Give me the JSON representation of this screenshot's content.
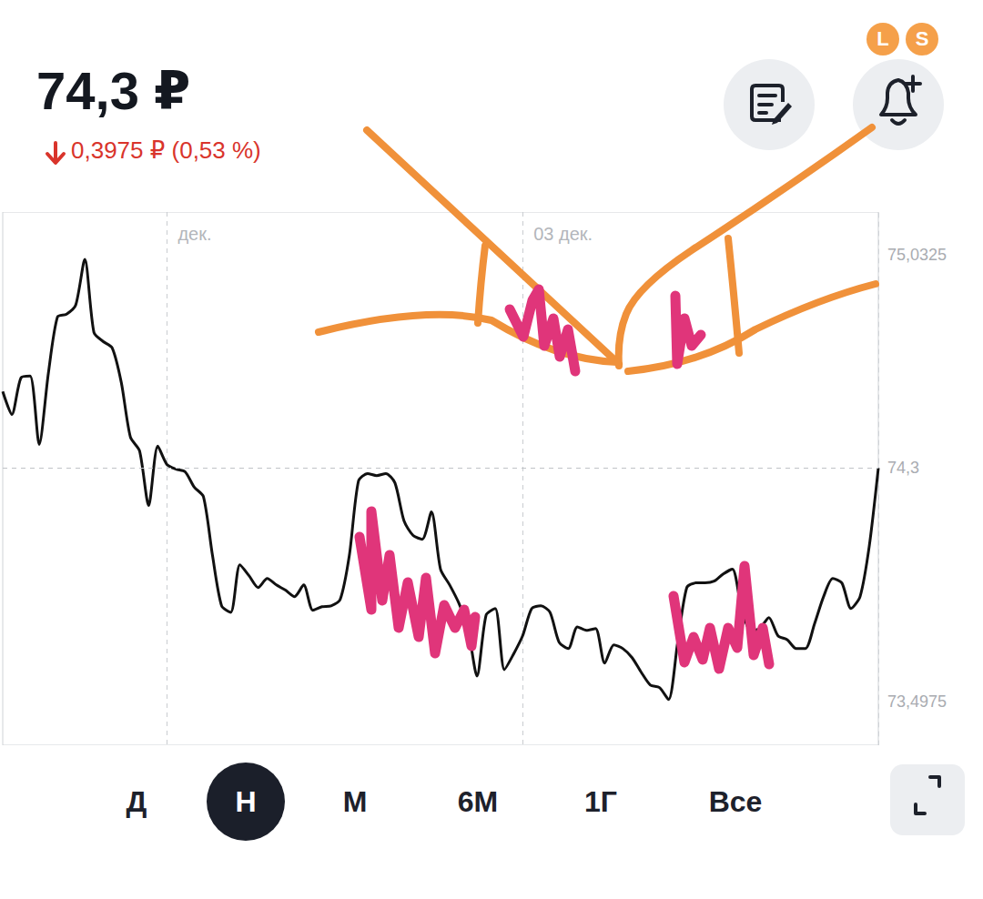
{
  "header": {
    "price": "74,3 ₽",
    "change": "0,3975 ₽ (0,53 %)",
    "badges": [
      "L",
      "S"
    ]
  },
  "periods": {
    "items": [
      "Д",
      "Н",
      "М",
      "6М",
      "1Г",
      "Все"
    ],
    "active": "Н"
  },
  "chart_data": {
    "type": "line",
    "color": "#111111",
    "categories": [
      null,
      null,
      null,
      null,
      null,
      null,
      null,
      null,
      null,
      null,
      null,
      null,
      null,
      null,
      null,
      null,
      null,
      null,
      "дек.",
      null,
      null,
      null,
      null,
      null,
      null,
      null,
      null,
      null,
      null,
      null,
      null,
      null,
      null,
      null,
      null,
      null,
      null,
      null,
      null,
      null,
      null,
      null,
      null,
      null,
      null,
      null,
      null,
      null,
      null,
      null,
      null,
      null,
      null,
      null,
      null,
      null,
      null,
      "03 дек.",
      null,
      null,
      null,
      null,
      null,
      null,
      null,
      null,
      null,
      null,
      null,
      null,
      null,
      null,
      null,
      null,
      null,
      null,
      null,
      null,
      null,
      null,
      null,
      null,
      null,
      null,
      null,
      null,
      null,
      null,
      null,
      null,
      null,
      null,
      null,
      null,
      null,
      null,
      null
    ],
    "values": [
      74.563,
      74.484,
      74.61,
      74.616,
      74.381,
      74.625,
      74.819,
      74.829,
      74.86,
      75.017,
      74.766,
      74.735,
      74.713,
      74.594,
      74.406,
      74.359,
      74.171,
      74.375,
      74.312,
      74.296,
      74.287,
      74.234,
      74.202,
      73.999,
      73.826,
      73.804,
      73.967,
      73.93,
      73.889,
      73.92,
      73.898,
      73.88,
      73.858,
      73.898,
      73.811,
      73.823,
      73.826,
      73.848,
      73.999,
      74.255,
      74.281,
      74.274,
      74.281,
      74.249,
      74.118,
      74.068,
      74.055,
      74.149,
      73.952,
      73.898,
      73.836,
      73.748,
      73.585,
      73.795,
      73.817,
      73.607,
      73.66,
      73.723,
      73.817,
      73.826,
      73.804,
      73.701,
      73.679,
      73.754,
      73.742,
      73.748,
      73.629,
      73.692,
      73.679,
      73.648,
      73.598,
      73.554,
      73.545,
      73.504,
      73.701,
      73.889,
      73.905,
      73.905,
      73.911,
      73.936,
      73.952,
      73.817,
      73.742,
      73.748,
      73.786,
      73.723,
      73.71,
      73.679,
      73.679,
      73.764,
      73.858,
      73.92,
      73.905,
      73.817,
      73.858,
      74.03,
      74.3
    ],
    "ylim": [
      73.347,
      75.18
    ],
    "yticks": [
      {
        "value": 73.4975,
        "label": "73,4975"
      },
      {
        "value": 74.3,
        "label": "74,3"
      },
      {
        "value": 75.0325,
        "label": "75,0325"
      }
    ],
    "grid": "x",
    "line_style": "solid"
  }
}
